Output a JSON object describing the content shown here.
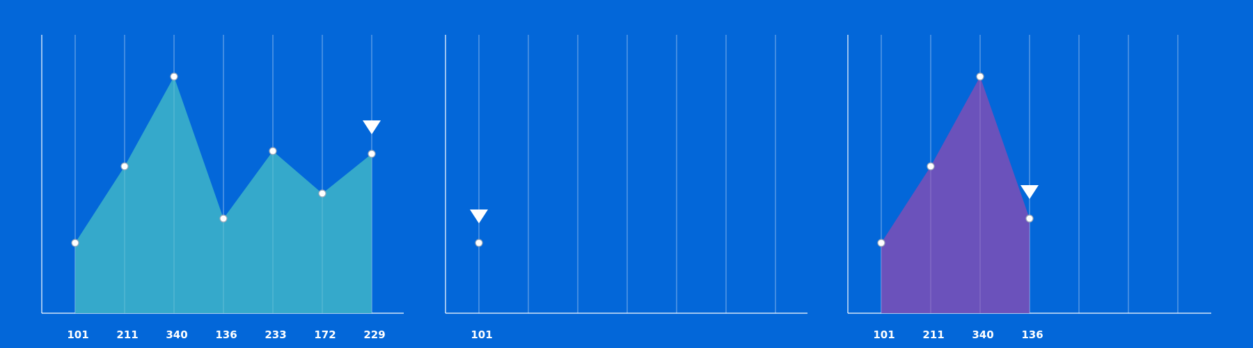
{
  "colors": {
    "background": "#0367d9",
    "axis": "#ffffff",
    "grid": "#7fb0ec",
    "marker": "#ffffff",
    "panel_fills": [
      "#3aafca",
      "#3aafca",
      "#7450b9"
    ]
  },
  "chart_data": [
    {
      "type": "area",
      "title": "",
      "xlabel": "",
      "ylabel": "",
      "categories": [
        "101",
        "211",
        "340",
        "136",
        "233",
        "172",
        "229"
      ],
      "values": [
        101,
        211,
        340,
        136,
        233,
        172,
        229
      ],
      "highlight": "229",
      "fill_color": "#3aafca",
      "grid": true,
      "ylim": [
        0,
        400
      ]
    },
    {
      "type": "area",
      "title": "",
      "xlabel": "",
      "ylabel": "",
      "categories": [
        "101"
      ],
      "values": [
        101
      ],
      "highlight": "101",
      "fill_color": "#3aafca",
      "grid": true,
      "ylim": [
        0,
        400
      ]
    },
    {
      "type": "area",
      "title": "",
      "xlabel": "",
      "ylabel": "",
      "categories": [
        "101",
        "211",
        "340",
        "136"
      ],
      "values": [
        101,
        211,
        340,
        136
      ],
      "highlight": "136",
      "fill_color": "#7450b9",
      "grid": true,
      "ylim": [
        0,
        400
      ]
    }
  ]
}
